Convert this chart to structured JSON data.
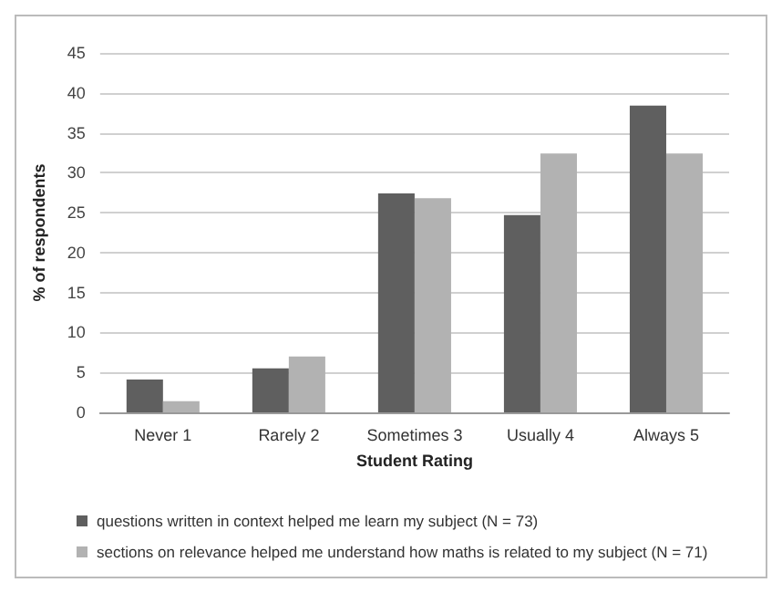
{
  "chart_data": {
    "type": "bar",
    "xlabel": "Student Rating",
    "ylabel": "% of respondents",
    "categories": [
      "Never 1",
      "Rarely 2",
      "Sometimes 3",
      "Usually 4",
      "Always 5"
    ],
    "series": [
      {
        "name": "questions written in context helped me learn my subject (N = 73)",
        "color": "#5f5f5f",
        "values": [
          4.1,
          5.5,
          27.4,
          24.7,
          38.4
        ]
      },
      {
        "name": "sections on relevance helped me understand how maths is related to my subject (N = 71)",
        "color": "#b2b2b2",
        "values": [
          1.4,
          7.0,
          26.8,
          32.4,
          32.4
        ]
      }
    ],
    "ylim": [
      0,
      45
    ],
    "yticks": [
      0,
      5,
      10,
      15,
      20,
      25,
      30,
      35,
      40,
      45
    ],
    "grid": "y",
    "legend": "bottom"
  }
}
